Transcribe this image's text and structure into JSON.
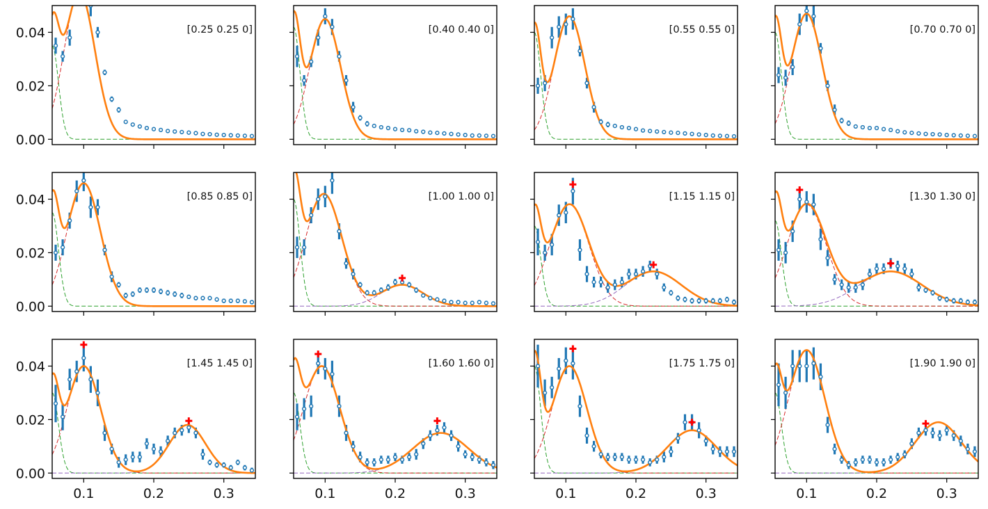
{
  "chart_data": {
    "type": "scatter",
    "description_free": true,
    "layout_grid": {
      "rows": 3,
      "cols": 4
    },
    "xlim": [
      0.055,
      0.345
    ],
    "ylim": [
      -0.002,
      0.05
    ],
    "xticks": [
      0.1,
      0.2,
      0.3
    ],
    "xtick_labels": [
      "0.1",
      "0.2",
      "0.3"
    ],
    "yticks": [
      0.0,
      0.02,
      0.04
    ],
    "ytick_labels": [
      "0.00",
      "0.02",
      "0.04"
    ],
    "x": [
      0.06,
      0.07,
      0.08,
      0.09,
      0.1,
      0.11,
      0.12,
      0.13,
      0.14,
      0.15,
      0.16,
      0.17,
      0.18,
      0.19,
      0.2,
      0.21,
      0.22,
      0.23,
      0.24,
      0.25,
      0.26,
      0.27,
      0.28,
      0.29,
      0.3,
      0.31,
      0.32,
      0.33,
      0.34
    ],
    "colors": {
      "data": "#1f77b4",
      "fit": "#ff7f0e",
      "peak1": "#d62728",
      "elastic": "#2ca02c",
      "peak2": "#9467bd",
      "marker": "#ff0000"
    },
    "panels": [
      {
        "label": "[0.25 0.25 0]",
        "values": [
          0.035,
          0.031,
          0.038,
          0.058,
          0.055,
          0.05,
          0.04,
          0.025,
          0.015,
          0.011,
          0.0065,
          0.0055,
          0.0048,
          0.0042,
          0.0038,
          0.0035,
          0.0031,
          0.0029,
          0.0027,
          0.0025,
          0.0023,
          0.002,
          0.0019,
          0.0017,
          0.0016,
          0.0015,
          0.0014,
          0.0013,
          0.0012
        ],
        "errors": [
          0.003,
          0.002,
          0.003,
          0.004,
          0.004,
          0.004,
          0.002,
          0.001,
          0.001,
          0.001,
          0.0005,
          0.0005,
          0.0005,
          0.0004,
          0.0004,
          0.0004,
          0.0004,
          0.0004,
          0.0004,
          0.0004,
          0.0004,
          0.0004,
          0.0004,
          0.0004,
          0.0004,
          0.0004,
          0.0004,
          0.0004,
          0.0004
        ],
        "fit": {
          "elastic_amp": 0.035,
          "p1_center": 0.094,
          "p1_amp": 0.055,
          "p1_width": 0.022,
          "p2_center": null,
          "p2_amp": 0,
          "p2_width": 0.03
        },
        "markers": []
      },
      {
        "label": "[0.40 0.40 0]",
        "values": [
          0.031,
          0.022,
          0.029,
          0.038,
          0.046,
          0.042,
          0.031,
          0.022,
          0.012,
          0.008,
          0.0058,
          0.005,
          0.0045,
          0.0042,
          0.0038,
          0.0035,
          0.0034,
          0.003,
          0.0028,
          0.0025,
          0.0024,
          0.0022,
          0.002,
          0.0018,
          0.0016,
          0.0014,
          0.0014,
          0.0013,
          0.0012
        ],
        "errors": [
          0.004,
          0.002,
          0.002,
          0.003,
          0.003,
          0.003,
          0.002,
          0.002,
          0.002,
          0.001,
          0.001,
          0.0005,
          0.0005,
          0.0005,
          0.0005,
          0.0005,
          0.0005,
          0.0005,
          0.0005,
          0.0005,
          0.0005,
          0.0005,
          0.0005,
          0.0005,
          0.0005,
          0.0005,
          0.0005,
          0.0005,
          0.0005
        ],
        "fit": {
          "elastic_amp": 0.042,
          "p1_center": 0.1,
          "p1_amp": 0.045,
          "p1_width": 0.022,
          "p2_center": null,
          "p2_amp": 0,
          "p2_width": 0.03
        },
        "markers": []
      },
      {
        "label": "[0.55 0.55 0]",
        "values": [
          0.02,
          0.021,
          0.038,
          0.042,
          0.043,
          0.045,
          0.033,
          0.021,
          0.012,
          0.0065,
          0.0055,
          0.005,
          0.0045,
          0.0042,
          0.0038,
          0.0033,
          0.0031,
          0.0029,
          0.0027,
          0.0025,
          0.0024,
          0.0022,
          0.002,
          0.0018,
          0.0016,
          0.0014,
          0.0013,
          0.0012,
          0.0011
        ],
        "errors": [
          0.003,
          0.003,
          0.004,
          0.004,
          0.004,
          0.004,
          0.002,
          0.002,
          0.002,
          0.001,
          0.001,
          0.0005,
          0.0005,
          0.0005,
          0.0005,
          0.0005,
          0.0005,
          0.0005,
          0.0005,
          0.0005,
          0.0005,
          0.0005,
          0.0005,
          0.0005,
          0.0005,
          0.0005,
          0.0005,
          0.0005,
          0.0005
        ],
        "fit": {
          "elastic_amp": 0.04,
          "p1_center": 0.105,
          "p1_amp": 0.046,
          "p1_width": 0.022,
          "p2_center": null,
          "p2_amp": 0,
          "p2_width": 0.03
        },
        "markers": []
      },
      {
        "label": "[0.70 0.70 0]",
        "values": [
          0.024,
          0.023,
          0.027,
          0.043,
          0.048,
          0.046,
          0.034,
          0.02,
          0.011,
          0.007,
          0.006,
          0.0048,
          0.0045,
          0.0042,
          0.0042,
          0.0038,
          0.0035,
          0.003,
          0.0026,
          0.0024,
          0.0022,
          0.002,
          0.0019,
          0.0018,
          0.0016,
          0.0015,
          0.0014,
          0.0013,
          0.0012
        ],
        "errors": [
          0.003,
          0.003,
          0.003,
          0.004,
          0.004,
          0.004,
          0.002,
          0.002,
          0.002,
          0.001,
          0.001,
          0.0005,
          0.0005,
          0.0005,
          0.0005,
          0.0005,
          0.0005,
          0.0005,
          0.0005,
          0.0005,
          0.0005,
          0.0005,
          0.0005,
          0.0005,
          0.0005,
          0.0005,
          0.0005,
          0.0005,
          0.0005
        ],
        "fit": {
          "elastic_amp": 0.04,
          "p1_center": 0.1,
          "p1_amp": 0.047,
          "p1_width": 0.022,
          "p2_center": null,
          "p2_amp": 0,
          "p2_width": 0.03
        },
        "markers": []
      },
      {
        "label": "[0.85 0.85 0]",
        "values": [
          0.02,
          0.022,
          0.032,
          0.043,
          0.047,
          0.037,
          0.037,
          0.021,
          0.011,
          0.008,
          0.004,
          0.0045,
          0.006,
          0.006,
          0.006,
          0.0055,
          0.005,
          0.0045,
          0.004,
          0.0035,
          0.003,
          0.003,
          0.003,
          0.0025,
          0.002,
          0.002,
          0.002,
          0.0018,
          0.0015
        ],
        "errors": [
          0.003,
          0.003,
          0.003,
          0.004,
          0.004,
          0.004,
          0.003,
          0.002,
          0.002,
          0.001,
          0.001,
          0.001,
          0.001,
          0.001,
          0.001,
          0.001,
          0.001,
          0.001,
          0.001,
          0.0008,
          0.0008,
          0.0008,
          0.0008,
          0.0008,
          0.0008,
          0.0008,
          0.0008,
          0.0008,
          0.0008
        ],
        "fit": {
          "elastic_amp": 0.035,
          "p1_center": 0.1,
          "p1_amp": 0.046,
          "p1_width": 0.024,
          "p2_center": null,
          "p2_amp": 0,
          "p2_width": 0.03
        },
        "markers": []
      },
      {
        "label": "[1.00 1.00 0]",
        "values": [
          0.022,
          0.022,
          0.034,
          0.04,
          0.041,
          0.047,
          0.028,
          0.016,
          0.012,
          0.008,
          0.005,
          0.005,
          0.006,
          0.007,
          0.009,
          0.009,
          0.008,
          0.006,
          0.004,
          0.003,
          0.0025,
          0.002,
          0.0015,
          0.0015,
          0.0012,
          0.0012,
          0.0015,
          0.0012,
          0.001
        ],
        "errors": [
          0.004,
          0.003,
          0.003,
          0.004,
          0.004,
          0.005,
          0.003,
          0.002,
          0.002,
          0.001,
          0.001,
          0.001,
          0.001,
          0.0012,
          0.0012,
          0.0012,
          0.001,
          0.001,
          0.0008,
          0.0008,
          0.0008,
          0.0008,
          0.0008,
          0.0008,
          0.0008,
          0.0008,
          0.0008,
          0.0008,
          0.0008
        ],
        "fit": {
          "elastic_amp": 0.04,
          "p1_center": 0.098,
          "p1_amp": 0.042,
          "p1_width": 0.026,
          "p2_center": 0.21,
          "p2_amp": 0.008,
          "p2_width": 0.03
        },
        "markers": [
          {
            "x": 0.21,
            "y": 0.0105
          }
        ]
      },
      {
        "label": "[1.15 1.15 0]",
        "values": [
          0.024,
          0.02,
          0.023,
          0.034,
          0.035,
          0.043,
          0.021,
          0.012,
          0.009,
          0.009,
          0.007,
          0.008,
          0.009,
          0.012,
          0.012,
          0.013,
          0.015,
          0.012,
          0.007,
          0.005,
          0.003,
          0.0025,
          0.002,
          0.002,
          0.002,
          0.002,
          0.002,
          0.0025,
          0.0015
        ],
        "errors": [
          0.005,
          0.003,
          0.004,
          0.004,
          0.004,
          0.005,
          0.004,
          0.003,
          0.002,
          0.002,
          0.002,
          0.002,
          0.002,
          0.002,
          0.002,
          0.002,
          0.002,
          0.002,
          0.0015,
          0.001,
          0.001,
          0.001,
          0.001,
          0.001,
          0.001,
          0.001,
          0.001,
          0.001,
          0.001
        ],
        "fit": {
          "elastic_amp": 0.03,
          "p1_center": 0.105,
          "p1_amp": 0.038,
          "p1_width": 0.028,
          "p2_center": 0.225,
          "p2_amp": 0.013,
          "p2_width": 0.04
        },
        "markers": [
          {
            "x": 0.11,
            "y": 0.0455
          },
          {
            "x": 0.225,
            "y": 0.0155
          }
        ]
      },
      {
        "label": "[1.30 1.30 0]",
        "values": [
          0.021,
          0.02,
          0.028,
          0.04,
          0.039,
          0.038,
          0.025,
          0.018,
          0.01,
          0.008,
          0.007,
          0.007,
          0.008,
          0.012,
          0.014,
          0.014,
          0.016,
          0.015,
          0.014,
          0.012,
          0.007,
          0.006,
          0.005,
          0.003,
          0.0025,
          0.002,
          0.002,
          0.0015,
          0.0015
        ],
        "errors": [
          0.004,
          0.004,
          0.004,
          0.004,
          0.004,
          0.004,
          0.004,
          0.003,
          0.002,
          0.002,
          0.002,
          0.002,
          0.002,
          0.002,
          0.002,
          0.002,
          0.002,
          0.002,
          0.002,
          0.002,
          0.0015,
          0.001,
          0.001,
          0.001,
          0.001,
          0.001,
          0.001,
          0.001,
          0.001
        ],
        "fit": {
          "elastic_amp": 0.032,
          "p1_center": 0.1,
          "p1_amp": 0.038,
          "p1_width": 0.028,
          "p2_center": 0.22,
          "p2_amp": 0.013,
          "p2_width": 0.045
        },
        "markers": [
          {
            "x": 0.09,
            "y": 0.0435
          },
          {
            "x": 0.22,
            "y": 0.016
          }
        ]
      },
      {
        "label": "[1.45 1.45 0]",
        "values": [
          0.026,
          0.021,
          0.035,
          0.038,
          0.043,
          0.035,
          0.03,
          0.015,
          0.009,
          0.004,
          0.005,
          0.006,
          0.006,
          0.011,
          0.009,
          0.008,
          0.012,
          0.015,
          0.016,
          0.017,
          0.015,
          0.007,
          0.004,
          0.003,
          0.003,
          0.002,
          0.004,
          0.002,
          0.001
        ],
        "errors": [
          0.007,
          0.005,
          0.004,
          0.004,
          0.005,
          0.005,
          0.005,
          0.003,
          0.002,
          0.002,
          0.002,
          0.002,
          0.002,
          0.002,
          0.002,
          0.002,
          0.002,
          0.002,
          0.002,
          0.002,
          0.002,
          0.002,
          0.001,
          0.001,
          0.001,
          0.001,
          0.001,
          0.001,
          0.001
        ],
        "fit": {
          "elastic_amp": 0.03,
          "p1_center": 0.1,
          "p1_amp": 0.04,
          "p1_width": 0.024,
          "p2_center": 0.248,
          "p2_amp": 0.018,
          "p2_width": 0.026
        },
        "markers": [
          {
            "x": 0.1,
            "y": 0.048
          },
          {
            "x": 0.25,
            "y": 0.0195
          }
        ]
      },
      {
        "label": "[1.60 1.60 0]",
        "values": [
          0.021,
          0.024,
          0.025,
          0.041,
          0.039,
          0.037,
          0.025,
          0.015,
          0.01,
          0.006,
          0.004,
          0.004,
          0.005,
          0.005,
          0.006,
          0.005,
          0.006,
          0.007,
          0.011,
          0.014,
          0.016,
          0.017,
          0.014,
          0.01,
          0.007,
          0.006,
          0.005,
          0.004,
          0.003
        ],
        "errors": [
          0.005,
          0.004,
          0.004,
          0.004,
          0.004,
          0.005,
          0.004,
          0.003,
          0.002,
          0.002,
          0.0015,
          0.0015,
          0.0015,
          0.0015,
          0.0015,
          0.0015,
          0.0015,
          0.002,
          0.002,
          0.002,
          0.002,
          0.002,
          0.002,
          0.002,
          0.0015,
          0.0015,
          0.0015,
          0.0015,
          0.0015
        ],
        "fit": {
          "elastic_amp": 0.03,
          "p1_center": 0.095,
          "p1_amp": 0.04,
          "p1_width": 0.026,
          "p2_center": 0.265,
          "p2_amp": 0.015,
          "p2_width": 0.04
        },
        "markers": [
          {
            "x": 0.09,
            "y": 0.0445
          },
          {
            "x": 0.26,
            "y": 0.0195
          }
        ]
      },
      {
        "label": "[1.75 1.75 0]",
        "values": [
          0.04,
          0.03,
          0.032,
          0.039,
          0.042,
          0.041,
          0.025,
          0.014,
          0.01,
          0.007,
          0.006,
          0.006,
          0.006,
          0.005,
          0.005,
          0.005,
          0.004,
          0.005,
          0.006,
          0.008,
          0.013,
          0.019,
          0.019,
          0.016,
          0.012,
          0.009,
          0.008,
          0.008,
          0.008
        ],
        "errors": [
          0.008,
          0.005,
          0.004,
          0.004,
          0.005,
          0.006,
          0.004,
          0.003,
          0.002,
          0.0015,
          0.0015,
          0.0015,
          0.0015,
          0.0015,
          0.0015,
          0.0015,
          0.0015,
          0.0015,
          0.002,
          0.002,
          0.002,
          0.003,
          0.003,
          0.003,
          0.002,
          0.002,
          0.002,
          0.002,
          0.002
        ],
        "fit": {
          "elastic_amp": 0.04,
          "p1_center": 0.105,
          "p1_amp": 0.04,
          "p1_width": 0.025,
          "p2_center": 0.28,
          "p2_amp": 0.016,
          "p2_width": 0.035
        },
        "markers": [
          {
            "x": 0.11,
            "y": 0.0465
          },
          {
            "x": 0.28,
            "y": 0.019
          }
        ]
      },
      {
        "label": "[1.90 1.90 0]",
        "values": [
          0.033,
          0.03,
          0.04,
          0.04,
          0.04,
          0.041,
          0.036,
          0.018,
          0.009,
          0.005,
          0.003,
          0.004,
          0.005,
          0.005,
          0.004,
          0.004,
          0.005,
          0.006,
          0.007,
          0.011,
          0.015,
          0.016,
          0.015,
          0.014,
          0.016,
          0.014,
          0.012,
          0.009,
          0.008
        ],
        "errors": [
          0.008,
          0.006,
          0.006,
          0.006,
          0.006,
          0.006,
          0.005,
          0.003,
          0.002,
          0.0015,
          0.0015,
          0.0015,
          0.0015,
          0.0015,
          0.0015,
          0.0015,
          0.0015,
          0.0015,
          0.0015,
          0.002,
          0.002,
          0.002,
          0.002,
          0.002,
          0.002,
          0.002,
          0.002,
          0.002,
          0.002
        ],
        "fit": {
          "elastic_amp": 0.03,
          "p1_center": 0.1,
          "p1_amp": 0.046,
          "p1_width": 0.026,
          "p2_center": 0.288,
          "p2_amp": 0.019,
          "p2_width": 0.033
        },
        "markers": [
          {
            "x": 0.27,
            "y": 0.0185
          }
        ]
      }
    ]
  }
}
